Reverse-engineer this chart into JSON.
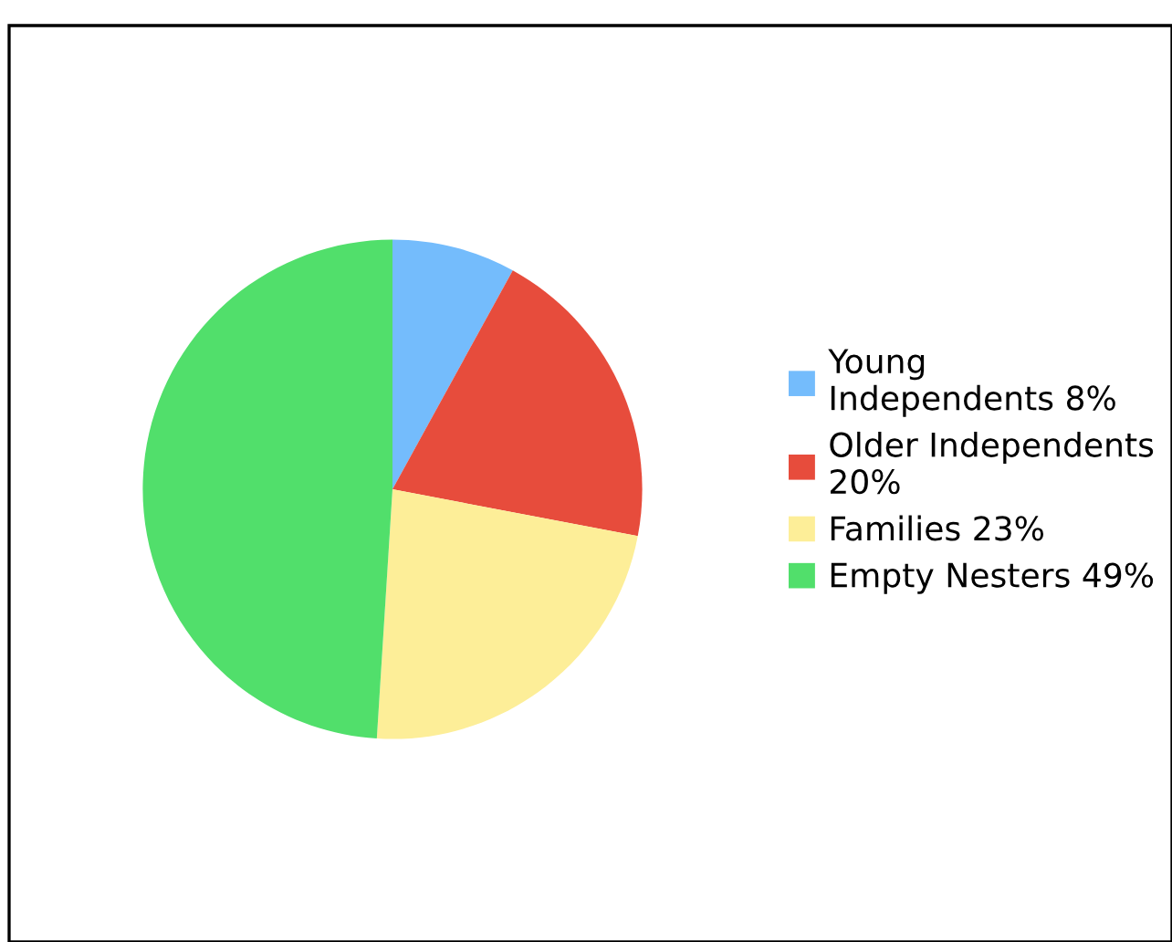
{
  "chart_data": {
    "type": "pie",
    "categories": [
      "Young\nIndependents 8%",
      "Older Independents\n20%",
      "Families 23%",
      "Empty Nesters 49%"
    ],
    "values": [
      8,
      20,
      23,
      49
    ],
    "colors": [
      "#74bcfc",
      "#e74c3c",
      "#fdee98",
      "#51df6b"
    ],
    "legend": "right"
  }
}
